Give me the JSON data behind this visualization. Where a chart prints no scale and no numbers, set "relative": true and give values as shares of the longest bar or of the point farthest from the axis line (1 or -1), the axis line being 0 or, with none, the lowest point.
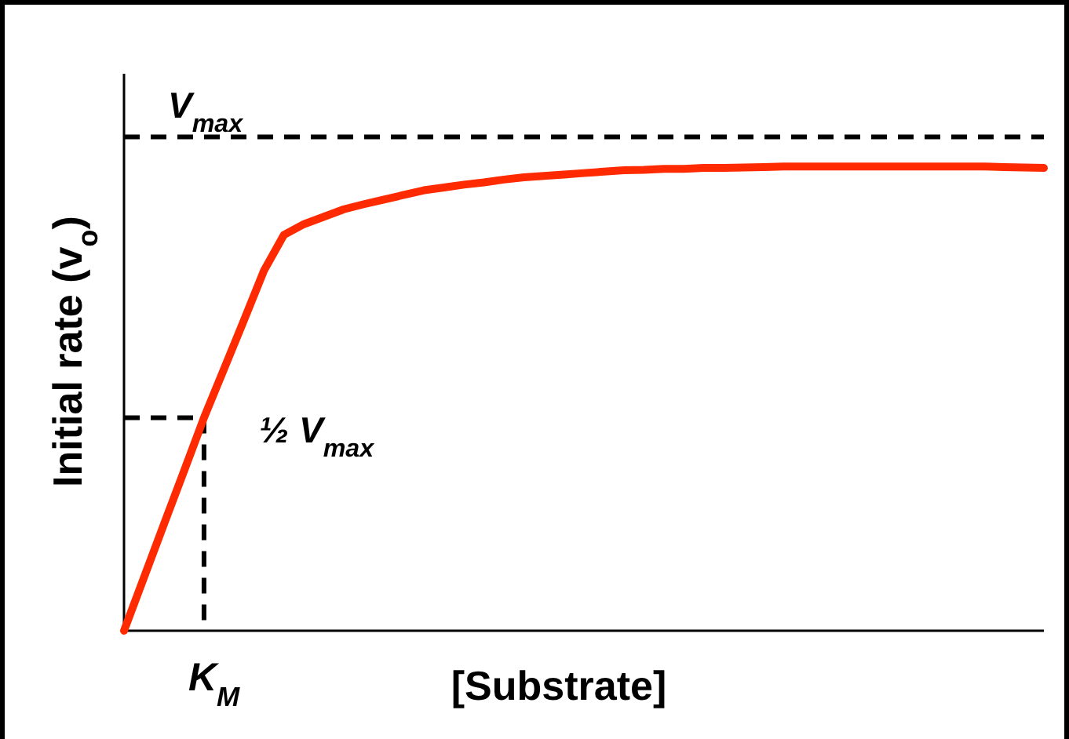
{
  "chart_data": {
    "type": "line",
    "relative": true,
    "xlabel": "[Substrate]",
    "ylabel": "Initial rate (v$_{o}$)",
    "marker": "none",
    "categories": [
      null,
      null,
      null,
      null,
      null,
      null,
      null,
      null,
      null,
      null,
      null,
      null,
      null,
      null,
      null,
      null,
      null,
      null,
      null,
      null,
      null,
      null,
      null,
      null,
      null,
      null,
      null,
      null,
      null,
      null,
      null,
      null,
      null,
      null,
      null,
      null,
      null,
      null,
      null,
      null,
      null,
      null,
      null,
      null,
      null,
      null,
      null
    ],
    "series": [
      {
        "color": "#ff2a00",
        "values": [
          0,
          0.115,
          0.23,
          0.344,
          0.459,
          0.564,
          0.669,
          0.776,
          0.853,
          0.876,
          0.892,
          0.908,
          0.919,
          0.929,
          0.939,
          0.949,
          0.955,
          0.961,
          0.966,
          0.972,
          0.977,
          0.98,
          0.983,
          0.986,
          0.989,
          0.992,
          0.993,
          0.995,
          0.995,
          0.997,
          0.997,
          0.998,
          0.999,
          1,
          1,
          1,
          1,
          1,
          1,
          1,
          1,
          1,
          1,
          1,
          0.999,
          0.998,
          0.997
        ]
      }
    ],
    "line_style": "solid",
    "ref_lines": [
      {
        "axis": "y",
        "value": 1.064,
        "label": "V$_{max}$",
        "color": "#000000",
        "line_style": "dashed"
      },
      {
        "axis": "y",
        "value": 0.459,
        "label": "½ V$_{max}$",
        "color": "#000000",
        "line_style": "dashed"
      }
    ],
    "annotations": [
      "K$_{M}$"
    ]
  }
}
